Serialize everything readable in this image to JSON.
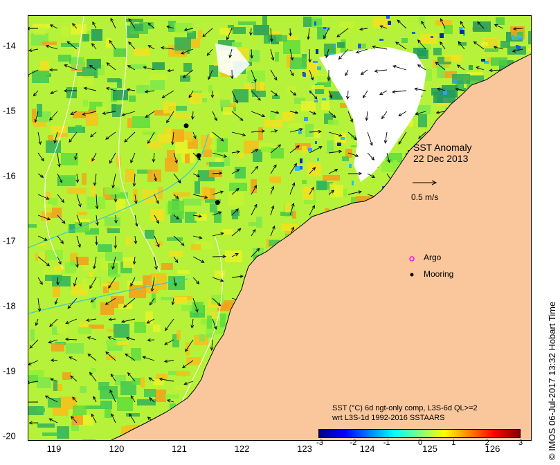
{
  "map": {
    "x_ticks": [
      "119",
      "120",
      "121",
      "122",
      "123",
      "124",
      "125",
      "126"
    ],
    "y_ticks": [
      "-14",
      "-15",
      "-16",
      "-17",
      "-18",
      "-19",
      "-20"
    ],
    "title_line1": "SST Anomaly",
    "title_line2": "22 Dec 2013",
    "scale_label": "0.5 m/s",
    "legend": {
      "argo_label": "Argo",
      "mooring_label": "Mooring",
      "argo_color": "#ff00ff",
      "mooring_color": "#000000"
    },
    "caption": {
      "line1": "SST (°C) 6d ngt-only comp, L3S-6d QL>=2",
      "line2": "wrt L3S-1d 1992-2016 SSTAARS"
    },
    "colorbar": {
      "ticks": [
        "-3",
        "-2",
        "-1",
        "0",
        "1",
        "2",
        "3"
      ],
      "colors": [
        "#00007f",
        "#0000ff",
        "#0080ff",
        "#00ffff",
        "#80ff80",
        "#ffff00",
        "#ff8000",
        "#ff0000",
        "#7f0000"
      ]
    },
    "credit": "© IMOS 06-Jul-2017 13:32 Hobart Time",
    "land_color": "#f9c79b",
    "moorings_lonlat": [
      [
        121.1,
        -15.22
      ],
      [
        121.3,
        -15.68
      ],
      [
        121.6,
        -16.4
      ]
    ]
  }
}
